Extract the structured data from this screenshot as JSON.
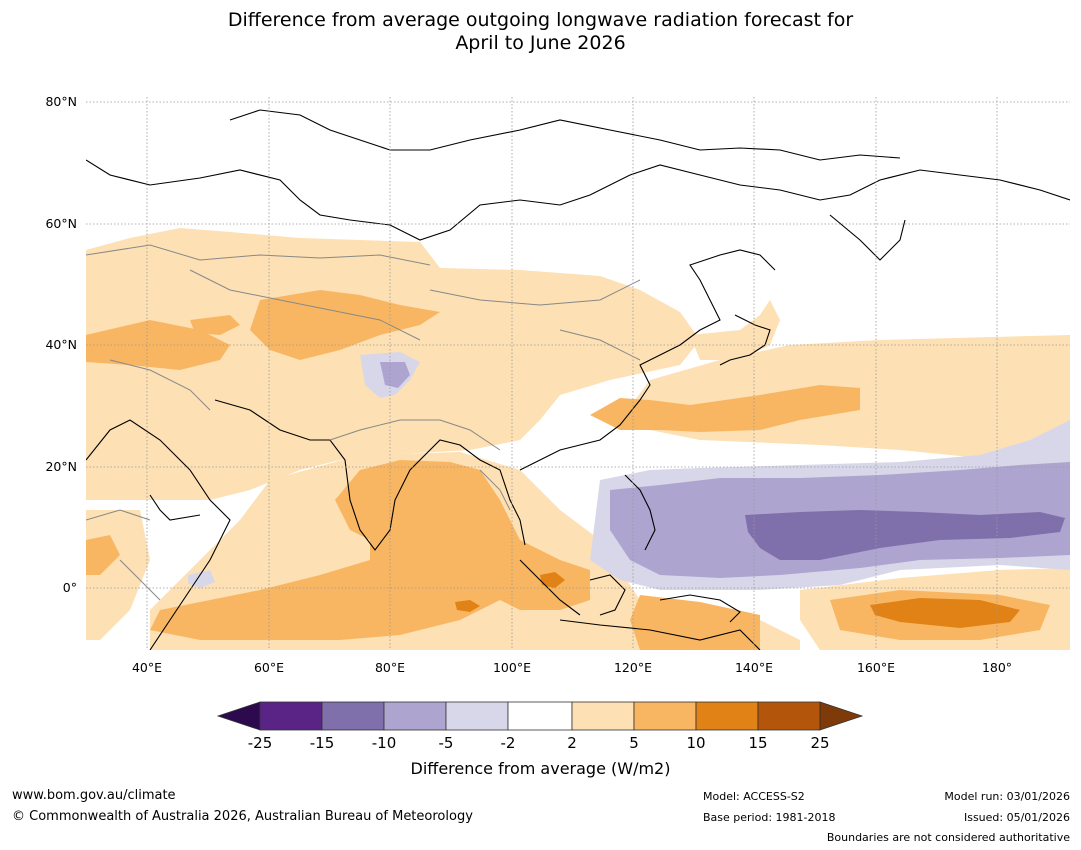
{
  "title": {
    "line1": "Difference from average outgoing longwave radiation forecast for",
    "line2": "April to June 2026"
  },
  "map": {
    "lat_labels": [
      "80°N",
      "60°N",
      "40°N",
      "20°N",
      "0°"
    ],
    "lon_labels": [
      "40°E",
      "60°E",
      "80°E",
      "100°E",
      "120°E",
      "140°E",
      "160°E",
      "180°"
    ],
    "lat_range": [
      -10,
      81
    ],
    "lon_range": [
      30,
      192
    ]
  },
  "colorbar": {
    "title": "Difference from average (W/m2)",
    "ticks": [
      "-25",
      "-15",
      "-10",
      "-5",
      "-2",
      "2",
      "5",
      "10",
      "15",
      "25"
    ],
    "colors": {
      "under": "#2d0a4e",
      "c1": "#5a2487",
      "c2": "#7f6fab",
      "c3": "#ada5cf",
      "c4": "#d8d7ea",
      "c5": "#ffffff",
      "c6": "#fde0b4",
      "c7": "#f9b662",
      "c8": "#e08216",
      "c9": "#b3560c",
      "over": "#7f3a09"
    }
  },
  "footer": {
    "website": "www.bom.gov.au/climate",
    "copyright": "© Commonwealth of Australia 2026, Australian Bureau of Meteorology",
    "model": "Model: ACCESS-S2",
    "base_period": "Base period: 1981-2018",
    "model_run": "Model run: 03/01/2026",
    "issued": "Issued: 05/01/2026",
    "boundaries": "Boundaries are not considered authoritative"
  }
}
